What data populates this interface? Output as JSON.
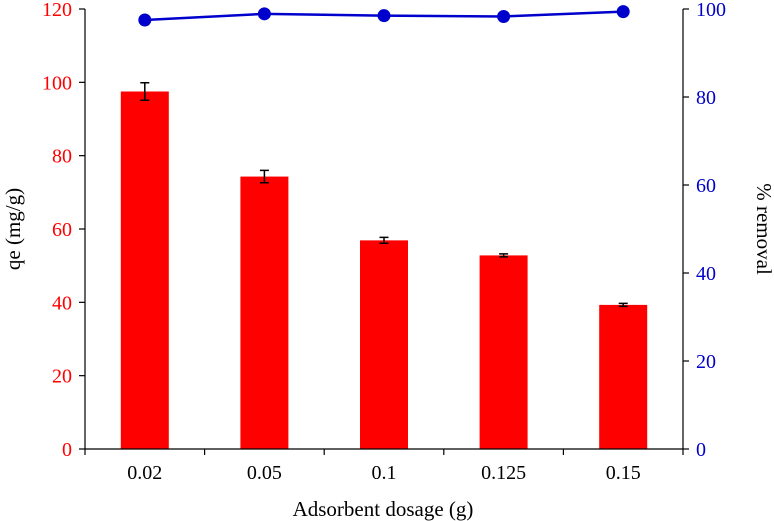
{
  "chart_data": {
    "type": "bar",
    "categories": [
      "0.02",
      "0.05",
      "0.1",
      "0.125",
      "0.15"
    ],
    "xlabel": "Adsorbent dosage (g)",
    "series": [
      {
        "type": "bar",
        "axis": "left",
        "values": [
          97.5,
          74.3,
          56.9,
          52.8,
          39.3
        ],
        "errors": [
          2.4,
          1.7,
          0.8,
          0.4,
          0.4
        ],
        "color": "#ff0000"
      },
      {
        "type": "line",
        "axis": "right",
        "values": [
          97.5,
          98.9,
          98.5,
          98.3,
          99.4
        ],
        "color": "#0000cc"
      }
    ],
    "y_left": {
      "label": "qe (mg/g)",
      "lim": [
        0,
        120
      ],
      "ticks": [
        "0",
        "20",
        "40",
        "60",
        "80",
        "100",
        "120"
      ],
      "color": "#ff0000"
    },
    "y_right": {
      "label": "% removal",
      "lim": [
        0,
        100
      ],
      "ticks": [
        "0",
        "20",
        "40",
        "60",
        "80",
        "100"
      ],
      "color": "#0000cc"
    },
    "grid": false,
    "legend": "none"
  }
}
